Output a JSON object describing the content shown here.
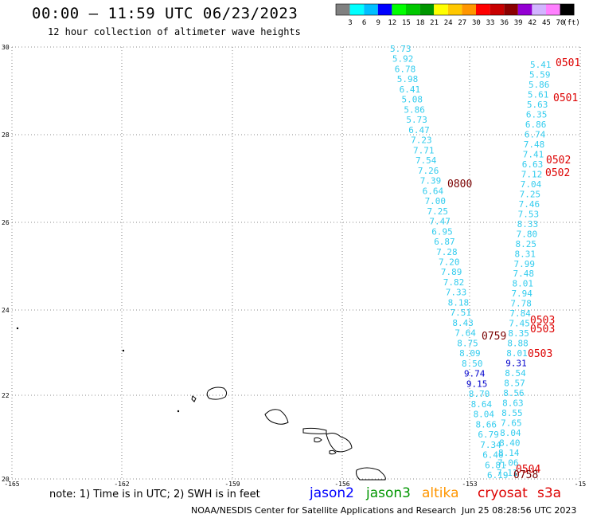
{
  "header": {
    "title": "00:00 – 11:59 UTC 06/23/2023",
    "subtitle": "12 hour collection of altimeter wave heights"
  },
  "legend": {
    "colors": [
      "#808080",
      "#00ffff",
      "#00bfff",
      "#0000ff",
      "#00ff00",
      "#00c800",
      "#009600",
      "#ffff00",
      "#ffc800",
      "#ff9600",
      "#ff0000",
      "#c80000",
      "#8b0000",
      "#9400d3",
      "#d2b4ff",
      "#ff80ff",
      "#000000"
    ],
    "labels": [
      "3",
      "6",
      "9",
      "12",
      "15",
      "18",
      "21",
      "24",
      "27",
      "30",
      "33",
      "36",
      "39",
      "42",
      "45",
      "70"
    ],
    "unit": "(ft)"
  },
  "axes": {
    "lat_labels": [
      "30",
      "28",
      "26",
      "24",
      "22",
      "20"
    ],
    "lon_labels": [
      "-165",
      "-162",
      "-159",
      "-156",
      "-153",
      "-15"
    ]
  },
  "track_a": {
    "color": "#33ccee",
    "values": [
      "5.73",
      "5.92",
      "6.78",
      "5.98",
      "6.41",
      "5.08",
      "5.86",
      "5.73",
      "6.47",
      "7.23",
      "7.71",
      "7.54",
      "7.26",
      "7.39",
      "6.64",
      "7.00",
      "7.25",
      "7.47",
      "6.95",
      "6.87",
      "7.28",
      "7.20",
      "7.89",
      "7.82",
      "7.33",
      "8.18",
      "7.51",
      "8.43",
      "7.64",
      "8.75",
      "8.09",
      "8.50",
      "9.74",
      "9.15",
      "8.70",
      "8.64",
      "8.04",
      "8.66",
      "6.79",
      "7.34",
      "6.40",
      "6.81",
      "6.19"
    ]
  },
  "track_b": {
    "color": "#33ccee",
    "values": [
      "5.41",
      "5.59",
      "5.86",
      "5.61",
      "5.63",
      "6.35",
      "6.86",
      "6.74",
      "7.48",
      "7.41",
      "6.63",
      "7.12",
      "7.04",
      "7.25",
      "7.46",
      "7.53",
      "8.33",
      "7.80",
      "8.25",
      "8.31",
      "7.99",
      "7.48",
      "8.01",
      "7.94",
      "7.78",
      "7.84",
      "7.45",
      "8.35",
      "8.88",
      "8.01",
      "9.31",
      "8.54",
      "8.57",
      "8.56",
      "8.63",
      "8.55",
      "7.65",
      "8.04",
      "8.40",
      "8.14",
      "7.06",
      "7.11"
    ]
  },
  "time_labels": {
    "red": [
      "0501",
      "0501",
      "0502",
      "0502",
      "0503",
      "0503",
      "0503",
      "0504"
    ],
    "dark": [
      "0800",
      "0759",
      "0758"
    ]
  },
  "note": "note: 1) Time is in UTC; 2) SWH is in feet",
  "satellites": [
    {
      "name": "jason2",
      "color": "#0000ff"
    },
    {
      "name": "jason3",
      "color": "#009600"
    },
    {
      "name": "altika",
      "color": "#ff9600"
    },
    {
      "name": "cryosat",
      "color": "#dd0000"
    },
    {
      "name": "s3a",
      "color": "#dd0000"
    }
  ],
  "credit": "NOAA/NESDIS Center for Satellite Applications and Research",
  "timestamp": "Jun 25 08:28:56 UTC 2023"
}
